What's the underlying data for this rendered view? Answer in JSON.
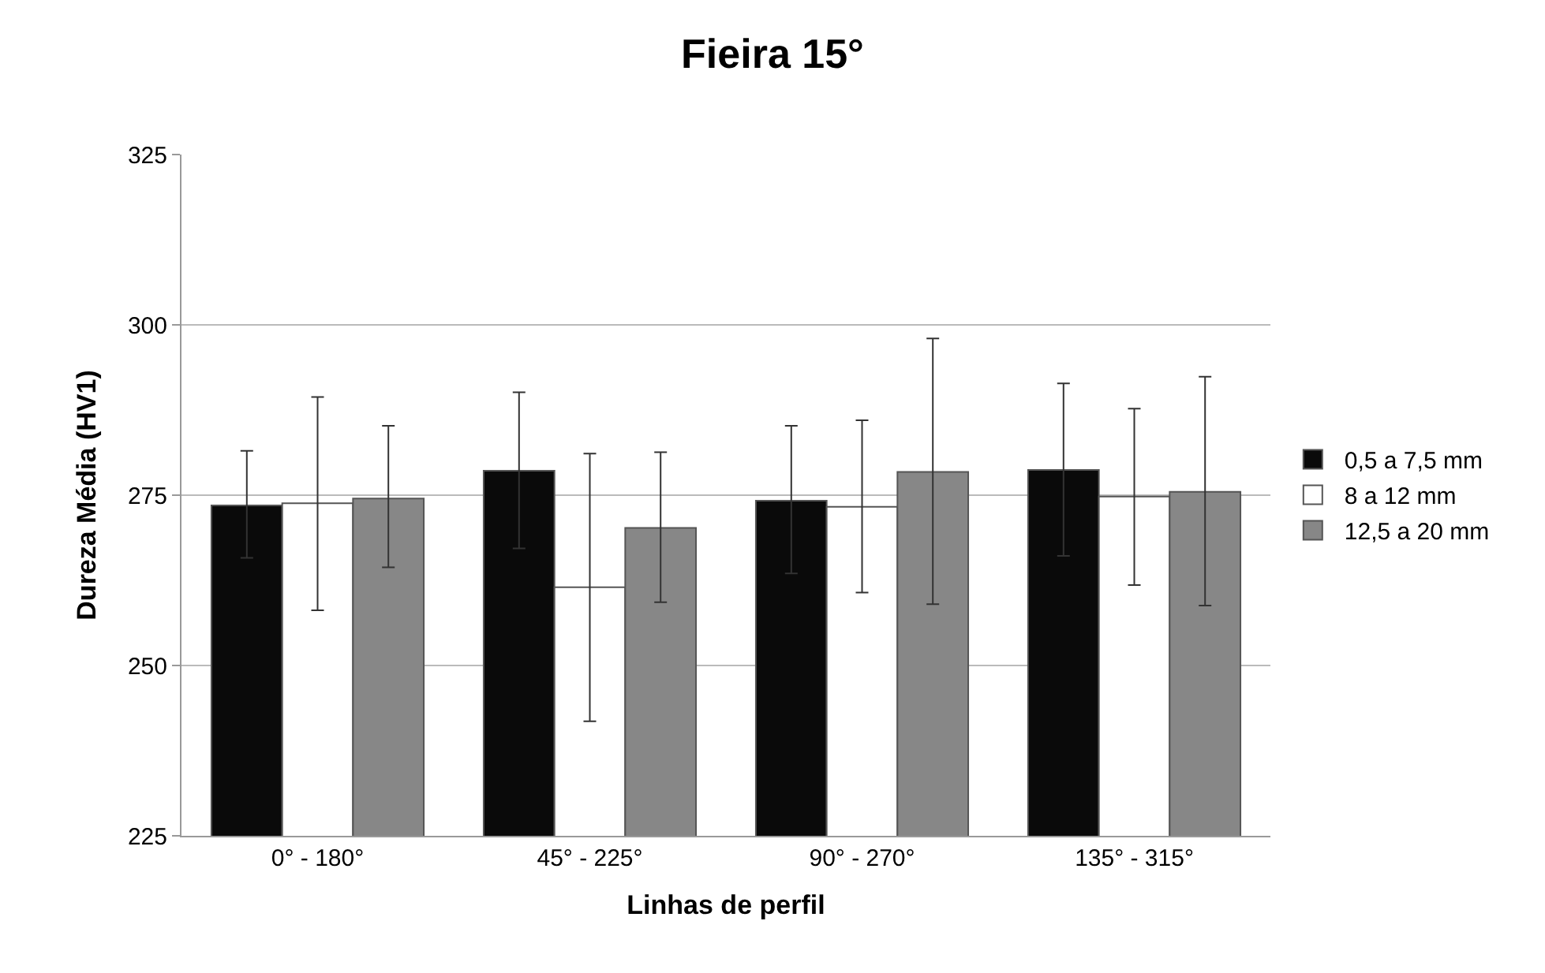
{
  "chart_data": {
    "type": "bar",
    "title": "Fieira 15°",
    "xlabel": "Linhas de perfil",
    "ylabel": "Dureza Média (HV1)",
    "categories": [
      "0° - 180°",
      "45° - 225°",
      "90° - 270°",
      "135° - 315°"
    ],
    "series": [
      {
        "name": "0,5 a 7,5 mm",
        "color": "#0a0a0a",
        "values": [
          273.5,
          278.6,
          274.2,
          278.7
        ],
        "errors": [
          [
            265.8,
            281.5
          ],
          [
            267.2,
            290.1
          ],
          [
            263.5,
            285.2
          ],
          [
            266.1,
            291.4
          ]
        ]
      },
      {
        "name": "8 a 12 mm",
        "color": "#ffffff",
        "values": [
          273.8,
          261.5,
          273.3,
          274.8
        ],
        "errors": [
          [
            258.1,
            289.4
          ],
          [
            241.8,
            281.1
          ],
          [
            260.7,
            286.0
          ],
          [
            261.8,
            287.7
          ]
        ]
      },
      {
        "name": "12,5 a 20 mm",
        "color": "#878787",
        "values": [
          274.5,
          270.2,
          278.4,
          275.5
        ],
        "errors": [
          [
            264.4,
            285.2
          ],
          [
            259.3,
            281.3
          ],
          [
            259.0,
            298.0
          ],
          [
            258.8,
            292.4
          ]
        ]
      }
    ],
    "ylim": [
      225,
      325
    ],
    "yticks": [
      225,
      250,
      275,
      300,
      325
    ],
    "grid": "y",
    "legend": "right"
  }
}
